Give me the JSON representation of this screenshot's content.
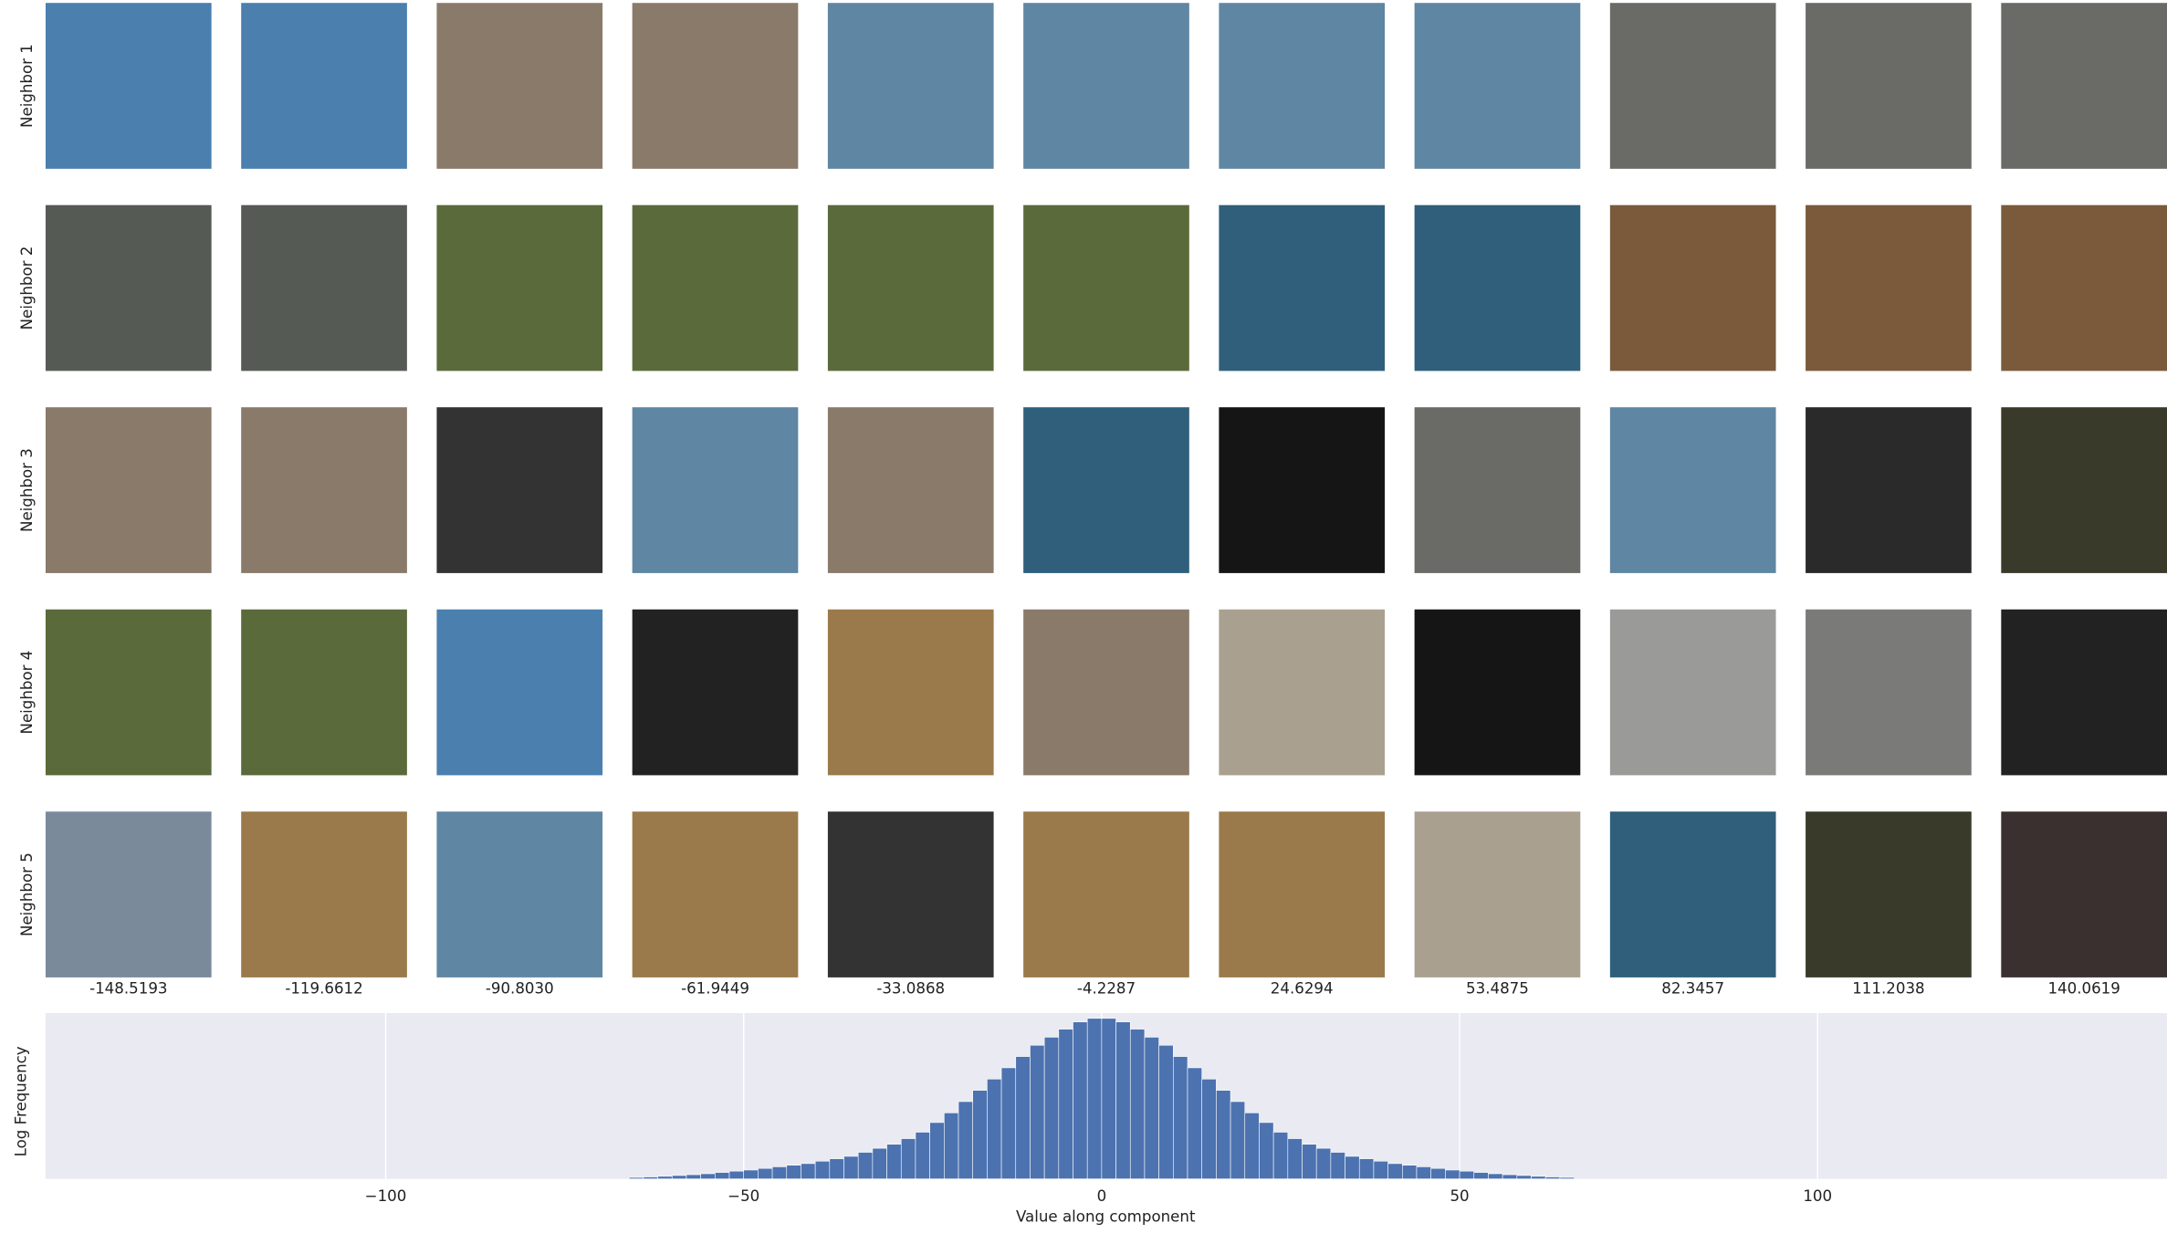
{
  "image_grid": {
    "row_labels": [
      "Neighbor 1",
      "Neighbor 2",
      "Neighbor 3",
      "Neighbor 4",
      "Neighbor 5"
    ],
    "column_labels": [
      "-148.5193",
      "-119.6612",
      "-90.8030",
      "-61.9449",
      "-33.0868",
      "-4.2287",
      "24.6294",
      "53.4875",
      "82.3457",
      "111.2038",
      "140.0619"
    ]
  },
  "chart_data": {
    "type": "histogram",
    "xlabel": "Value along component",
    "ylabel": "Log Frequency",
    "color": "#4c72b0",
    "grid": true,
    "xlim": [
      -147.5,
      148.8
    ],
    "ylim": [
      0,
      103
    ],
    "xticks": [
      {
        "value": -100,
        "label": "−100"
      },
      {
        "value": -50,
        "label": "−50"
      },
      0,
      50,
      100
    ],
    "bins": [
      -66,
      -64,
      -62,
      -60,
      -58,
      -56,
      -54,
      -52,
      -50,
      -48,
      -46,
      -44,
      -42,
      -40,
      -38,
      -36,
      -34,
      -32,
      -30,
      -28,
      -26,
      -24,
      -22,
      -20,
      -18,
      -16,
      -14,
      -12,
      -10,
      -8,
      -6,
      -4,
      -2,
      0,
      2,
      4,
      6,
      8,
      10,
      12,
      14,
      16,
      18,
      20,
      22,
      24,
      26,
      28,
      30,
      32,
      34,
      36,
      38,
      40,
      42,
      44,
      46,
      48,
      50,
      52,
      54,
      56,
      58,
      60,
      62,
      64,
      66
    ],
    "counts": [
      0.9,
      1.2,
      1.6,
      2.1,
      2.6,
      3.2,
      4,
      4.8,
      5.5,
      6.5,
      7.5,
      8.5,
      9.5,
      11,
      12.5,
      14,
      16.5,
      19,
      21.5,
      25,
      29,
      35,
      41,
      48,
      55,
      62,
      69,
      76,
      83,
      88,
      93,
      97.5,
      99.7,
      99.7,
      97.5,
      93,
      88,
      83,
      76,
      69,
      62,
      55,
      48,
      41,
      35,
      29,
      25,
      21.5,
      19,
      16.5,
      14,
      12.5,
      11,
      9.5,
      8.5,
      7.5,
      6.5,
      5.5,
      4.8,
      4,
      3.2,
      2.6,
      2.1,
      1.6,
      1.2,
      0.9
    ]
  }
}
